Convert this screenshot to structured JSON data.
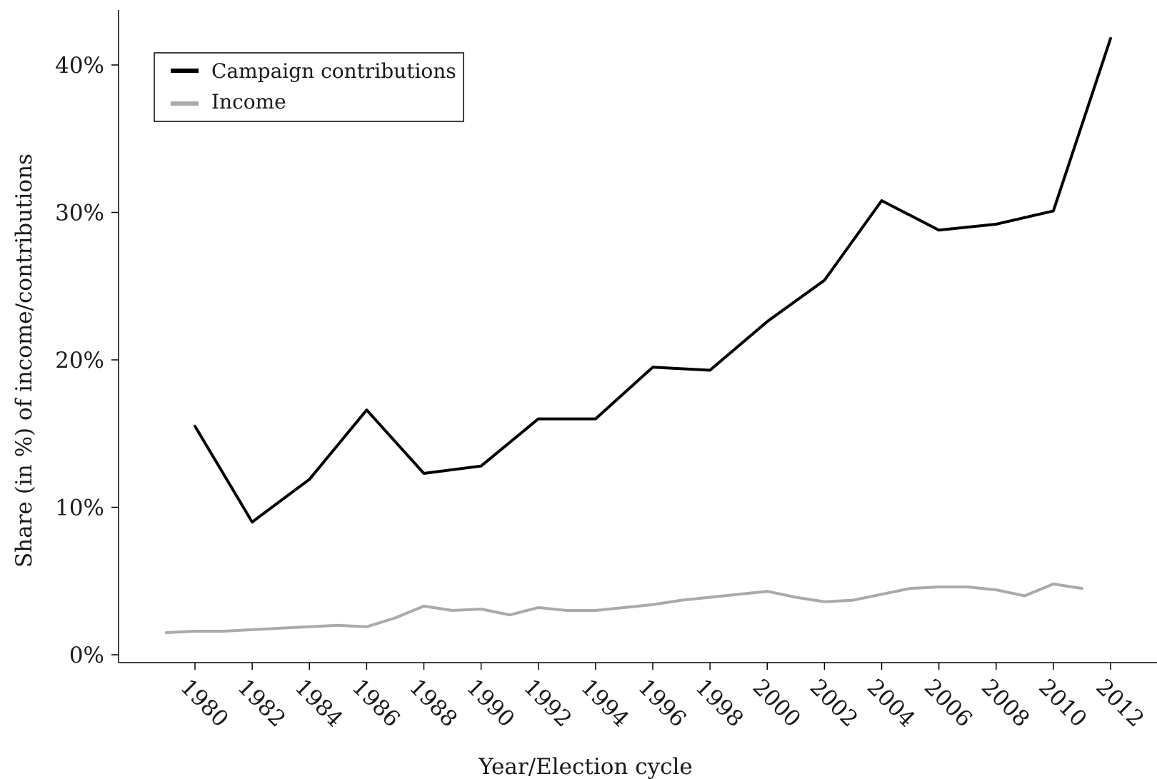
{
  "chart_data": {
    "type": "line",
    "title": "",
    "xlabel": "Year/Election cycle",
    "ylabel": "Share (in %) of income/contributions",
    "xlim": [
      1977.5,
      2013.5
    ],
    "ylim": [
      -0.5,
      44
    ],
    "x_ticks": [
      "1980",
      "1982",
      "1984",
      "1986",
      "1988",
      "1990",
      "1992",
      "1994",
      "1996",
      "1998",
      "2000",
      "2002",
      "2004",
      "2006",
      "2008",
      "2010",
      "2012"
    ],
    "y_ticks": [
      "0%",
      "10%",
      "20%",
      "30%",
      "40%"
    ],
    "y_tick_values": [
      0,
      10,
      20,
      30,
      40
    ],
    "legend_position": "top-left",
    "grid": false,
    "series": [
      {
        "name": "Campaign contributions",
        "color": "#000000",
        "x": [
          1980,
          1982,
          1984,
          1986,
          1988,
          1990,
          1992,
          1994,
          1996,
          1998,
          2000,
          2002,
          2004,
          2006,
          2008,
          2010,
          2012
        ],
        "y": [
          15.5,
          9.0,
          11.9,
          16.6,
          12.3,
          12.8,
          16.0,
          16.0,
          19.5,
          19.3,
          22.6,
          25.4,
          30.8,
          28.8,
          29.2,
          30.1,
          41.8
        ]
      },
      {
        "name": "Income",
        "color": "#aaaaaa",
        "x": [
          1979,
          1980,
          1981,
          1982,
          1983,
          1984,
          1985,
          1986,
          1987,
          1988,
          1989,
          1990,
          1991,
          1992,
          1993,
          1994,
          1995,
          1996,
          1997,
          1998,
          1999,
          2000,
          2001,
          2002,
          2003,
          2004,
          2005,
          2006,
          2007,
          2008,
          2009,
          2010,
          2011
        ],
        "y": [
          1.5,
          1.6,
          1.6,
          1.7,
          1.8,
          1.9,
          2.0,
          1.9,
          2.5,
          3.3,
          3.0,
          3.1,
          2.7,
          3.2,
          3.0,
          3.0,
          3.2,
          3.4,
          3.7,
          3.9,
          4.1,
          4.3,
          3.9,
          3.6,
          3.7,
          4.1,
          4.5,
          4.6,
          4.6,
          4.4,
          4.0,
          4.8,
          4.5
        ]
      }
    ]
  }
}
